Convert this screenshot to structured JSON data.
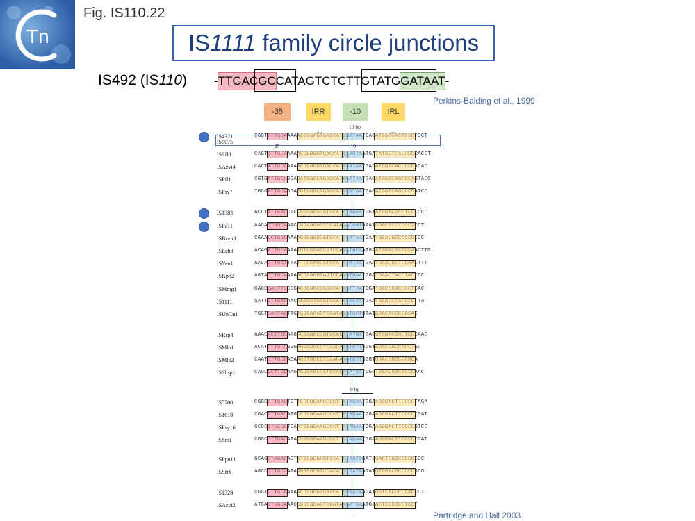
{
  "fig_label": "Fig. IS110.22",
  "title": {
    "prefix": "IS",
    "italic": "1111",
    "suffix": " family circle junctions"
  },
  "is492": {
    "name": "IS492 (IS",
    "italic": "110",
    "close": ")"
  },
  "sequence": {
    "lead": "-",
    "red": "TTGACGC",
    "middle1": "CATAGTCT",
    "middle2": "CTTGT",
    "middle3": "ATG",
    "green": "GATAAT",
    "tail": "-"
  },
  "ref_top": "Perkins-Balding et al., 1999",
  "ref_bottom": "Partridge and Hall 2003",
  "legend": [
    {
      "label": "-35",
      "color": "#f4b183"
    },
    {
      "label": "IRR",
      "color": "#ffd966"
    },
    {
      "label": "-10",
      "color": "#c5e0b4"
    },
    {
      "label": "IRL",
      "color": "#ffd966"
    }
  ],
  "annotations": {
    "bp10": "10 bp",
    "bp9": "9 bp",
    "dots1": "....",
    "dots2": "....",
    "m35": "-35",
    "m10": "-10"
  },
  "rows": [
    {
      "label": "IS4321",
      "seq": "CGGTGTTGCAAAAACGGGAGTGACCATAGATAATGAGATGGTCACTCCCTCCT"
    },
    {
      "label": "IS5075",
      "seq": ""
    },
    {
      "label": "ISSfl8",
      "seq": "CAGTGTTGCAAAAACGGGGGTGACCATAGAGTAATGATATGGTCACCCCCACCT"
    },
    {
      "label": "ISAzvi4",
      "seq": "CACTATTGCAAAAACGGGGGTGACCATAGATAATGAGATGGTCACCCCCACAC"
    },
    {
      "label": "ISPfl1",
      "seq": "CGTGATTGCAGGAGATGGGCTGACCATAGATAATGAGATGGTCAGCCCAGTACG"
    },
    {
      "label": "ISPsy7",
      "seq": "TGCGATTGCAGGAGGTGGGCTGACCATACATAATGAGATGGTCAGCCCGATCC"
    },
    {
      "label": "IS1383",
      "seq": "ACCTATTGAGCTCCGGGAGGCGTCCATATAAGATGGTATGGACGCCTCCCCCC"
    },
    {
      "label": "ISPa11",
      "seq": "AACACTGGCAAACCGGAGGAGTCCATATACAATGAATGGACTCCTCCCTCCT"
    },
    {
      "label": "ISBcen3",
      "seq": "CGAACCTGGCAAAACGGGGGCGTCCATATATAATGAATGGACGCCCCCGCCC"
    },
    {
      "label": "ISEch3",
      "seq": "ACAGATTGCAAAATGTCGGAGCGTCCATATACGATGAATGGACGCTCCAACTTG"
    },
    {
      "label": "ISYen1",
      "seq": "AACACTTGGTTTATTCGGAGCGTCCATATATAATGAATGGACGCTCCAACTTT"
    },
    {
      "label": "ISKpn2",
      "seq": "AGTACTTGCAAAAACGGAGGTAGTCCATATAAATGGATGGACTACCTACTCC"
    },
    {
      "label": "ISMmg1",
      "seq": "GAGCCACTTGCCGACGGGGCGGGCCATACTTTATGGATGGCCCGCCCCTCAC"
    },
    {
      "label": "IS1111",
      "seq": "GATTGTTGACAACAAGGGTGGGTCCATATACAATGAATGGACCCACCCCTTA"
    },
    {
      "label": "ISUnCu1",
      "seq": "TGCTCACTACTTGTGGGAGAGTCCATATATGCTGTATGGACTCCCCGCAC"
    },
    {
      "label": "ISRsp4",
      "seq": "AAACACTTGCAAGCCGGAGCCGTCCACATATGTTGAGGTGGACGGCTCCCAAC"
    },
    {
      "label": "ISMlo1",
      "seq": "ACATCTTGCAGGGAGGAGGCGTCCACATATGTTGGGTGGACGGCCTCCTGC"
    },
    {
      "label": "ISMlo2",
      "seq": "CAATCTTGCGAGAAGGTGCCGTCCACATATGTTGGGTGGACGGCCCCGCA"
    },
    {
      "label": "ISShsp1",
      "seq": "CAGCCCTTGCAAGAGGGAGCCGTCCACATATGTTGGGTGGACGGCTCCCAAC"
    },
    {
      "label": "IS5708",
      "seq": "CGGCGTTGACTGTTCGGGGAAGCCCTTATAGAATGGAAGGGACTTCCCCTAGA"
    },
    {
      "label": "IS1618",
      "seq": "CGACGTTGACATGCCGGGGAAGCCCTTATAGAATGGAAGGGACTTCCCCTGAT"
    },
    {
      "label": "ISPsy16",
      "seq": "GCGCTTGCGCTCAATGGGGAAGCCCTTATAGAATGGAAGGGACTTCCCCGTCC"
    },
    {
      "label": "ISSm1",
      "seq": "CGGCGTTGACATACCGGGGAAGCCCTTATAGAATGGAAGGGACTTCCCCTGAT"
    },
    {
      "label": "ISPpu11",
      "seq": "GCAGCTAGACAGTGTGGGCGAGTCCATATAATCGATGGACTCGCCCCCGCCC"
    },
    {
      "label": "ISSfr1",
      "seq": "AGCCCTTGCCATAGGGGGCGTCCACATATGATGATATGTGGACGCCCCCGCG"
    },
    {
      "label": "IS1328",
      "seq": "CGGTGTTGCAAAAACGGGGGTGACCATAGAATGAGATGGTCACCCCCACCCT"
    },
    {
      "label": "ISAzvi2",
      "seq": "ATCACTGGCAAACCGGGGGAGTCCATATAATGAATGGACTCCCCCCTCCT"
    }
  ]
}
